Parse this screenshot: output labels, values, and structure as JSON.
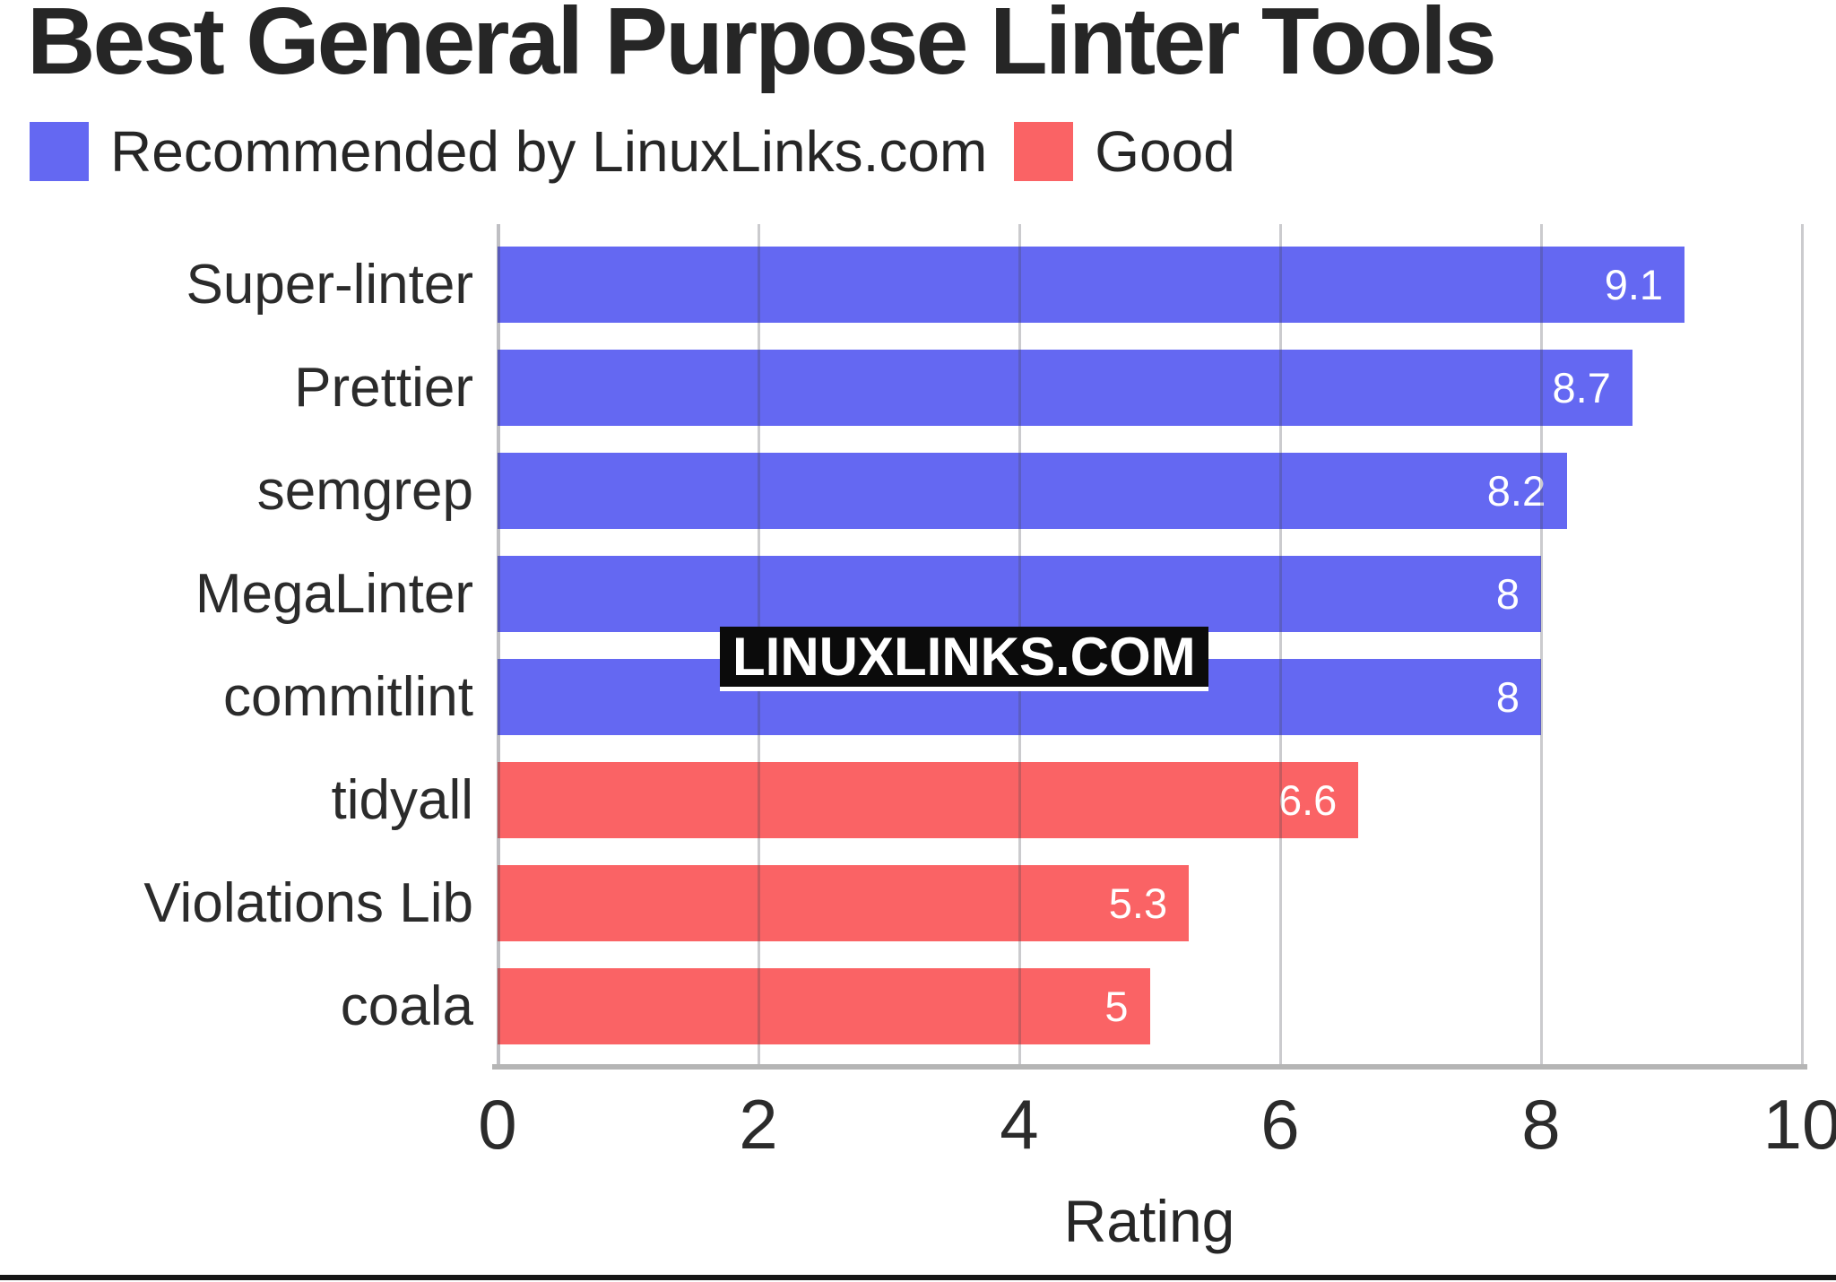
{
  "watermark": "LINUXLINKS.COM",
  "chart_data": {
    "type": "bar",
    "orientation": "horizontal",
    "title": "Best General Purpose Linter Tools",
    "categories": [
      "Super-linter",
      "Prettier",
      "semgrep",
      "MegaLinter",
      "commitlint",
      "tidyall",
      "Violations Lib",
      "coala"
    ],
    "series": [
      {
        "name": "Recommended by LinuxLinks.com",
        "color": "#6468F2",
        "values": [
          9.1,
          8.7,
          8.2,
          8,
          8,
          null,
          null,
          null
        ]
      },
      {
        "name": "Good",
        "color": "#FA6365",
        "values": [
          null,
          null,
          null,
          null,
          null,
          6.6,
          5.3,
          5
        ]
      }
    ],
    "value_labels": [
      "9.1",
      "8.7",
      "8.2",
      "8",
      "8",
      "6.6",
      "5.3",
      "5"
    ],
    "xlabel": "Rating",
    "xlim": [
      0,
      10
    ],
    "xticks": [
      "0",
      "2",
      "4",
      "6",
      "8",
      "10"
    ],
    "grid": true,
    "legend_position": "top"
  }
}
